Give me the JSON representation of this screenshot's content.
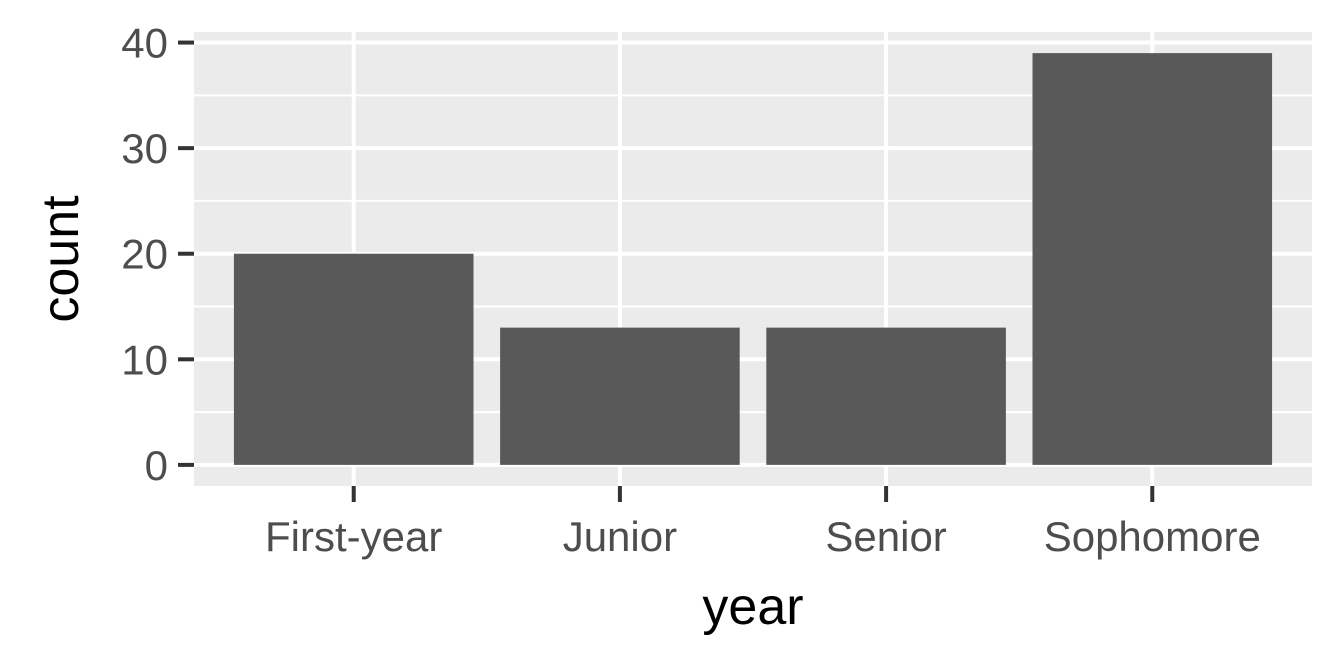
{
  "chart_data": {
    "type": "bar",
    "categories": [
      "First-year",
      "Junior",
      "Senior",
      "Sophomore"
    ],
    "values": [
      20,
      13,
      13,
      39
    ],
    "title": "",
    "xlabel": "year",
    "ylabel": "count",
    "ylim": [
      -2,
      41
    ],
    "yticks": [
      0,
      10,
      20,
      30,
      40
    ],
    "grid": true,
    "legend": "none",
    "colors": {
      "bar": "#595959",
      "panel": "#ebebeb",
      "grid": "#ffffff",
      "tick_text": "#4d4d4d",
      "tick_mark": "#333333"
    }
  }
}
